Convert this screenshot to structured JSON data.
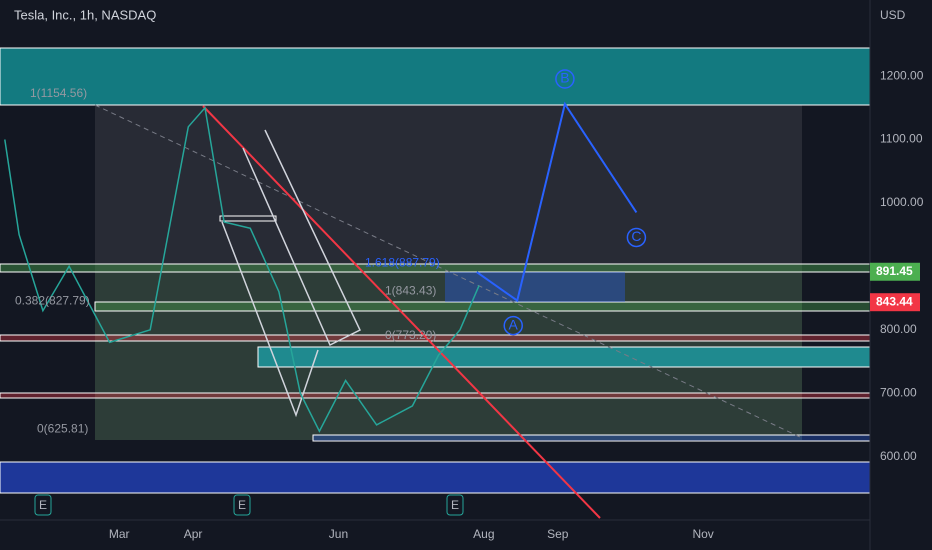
{
  "chart_data": {
    "type": "line",
    "title": "Tesla, Inc., 1h, NASDAQ",
    "currency": "USD",
    "color": "#26a69a",
    "xlim": [
      10,
      375
    ],
    "ylim": [
      500,
      1320
    ],
    "yticks": [
      {
        "value": 600,
        "label": "600.00"
      },
      {
        "value": 700,
        "label": "700.00"
      },
      {
        "value": 800,
        "label": "800.00"
      },
      {
        "value": 1000,
        "label": "1000.00"
      },
      {
        "value": 1100,
        "label": "1100.00"
      },
      {
        "value": 1200,
        "label": "1200.00"
      }
    ],
    "xticks": [
      {
        "value": 60,
        "label": "Mar"
      },
      {
        "value": 91,
        "label": "Apr"
      },
      {
        "value": 152,
        "label": "Jun"
      },
      {
        "value": 213,
        "label": "Aug"
      },
      {
        "value": 244,
        "label": "Sep"
      },
      {
        "value": 305,
        "label": "Nov"
      }
    ],
    "x": [
      12,
      18,
      28,
      39,
      56,
      73,
      83,
      89,
      96,
      104,
      115,
      127,
      136,
      144,
      155,
      168,
      183,
      194,
      203,
      211
    ],
    "values": [
      1100,
      950,
      830,
      900,
      780,
      800,
      1000,
      1120,
      1150,
      970,
      960,
      860,
      700,
      640,
      720,
      650,
      680,
      760,
      800,
      870
    ],
    "projection": {
      "color": "#2962ff",
      "x": [
        210,
        227,
        247,
        277
      ],
      "values": [
        891,
        846,
        1156,
        985
      ],
      "labels": [
        null,
        "A",
        "B",
        "C"
      ]
    },
    "fib_labels": [
      {
        "value": 1154.56,
        "label": "1(1154.56)"
      },
      {
        "value": 827.79,
        "label": "0.382(827.79)"
      },
      {
        "value": 625.81,
        "label": "0(625.81)"
      },
      {
        "value": 887.79,
        "label": "1.618(887.79)"
      },
      {
        "value": 843.43,
        "label": "1(843.43)"
      },
      {
        "value": 773.29,
        "label": "0(773.29)"
      }
    ],
    "price_tags": [
      {
        "value": 891.45,
        "color": "#4caf50"
      },
      {
        "value": 843.44,
        "color": "#f23645"
      }
    ],
    "earnings": [
      "E",
      "E",
      "E"
    ]
  }
}
